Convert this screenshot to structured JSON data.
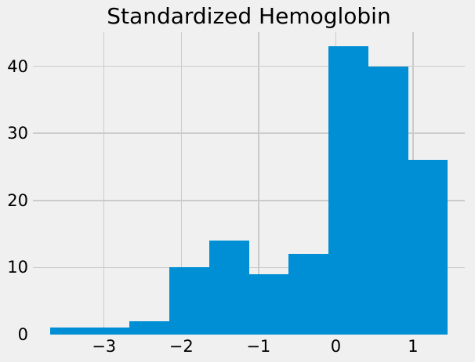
{
  "chart_data": {
    "type": "histogram",
    "title": "Standardized Hemoglobin",
    "xlabel": "",
    "ylabel": "",
    "bin_edges": [
      -3.697,
      -3.183,
      -2.669,
      -2.154,
      -1.64,
      -1.126,
      -0.612,
      -0.097,
      0.417,
      0.931,
      1.445
    ],
    "counts": [
      1,
      1,
      2,
      10,
      14,
      9,
      12,
      43,
      40,
      26
    ],
    "total_count": 158,
    "x_ticks": [
      {
        "value": -3,
        "label": "−3"
      },
      {
        "value": -2,
        "label": "−2"
      },
      {
        "value": -1,
        "label": "−1"
      },
      {
        "value": 0,
        "label": "0"
      },
      {
        "value": 1,
        "label": "1"
      }
    ],
    "y_ticks": [
      {
        "value": 0,
        "label": "0",
        "gridline": false
      },
      {
        "value": 10,
        "label": "10",
        "gridline": true
      },
      {
        "value": 20,
        "label": "20",
        "gridline": true
      },
      {
        "value": 30,
        "label": "30",
        "gridline": true
      },
      {
        "value": 40,
        "label": "40",
        "gridline": true
      }
    ],
    "xlim": [
      -3.92,
      1.67
    ],
    "ylim": [
      0,
      45.1
    ],
    "grid": true,
    "legend": null,
    "style": "fivethirtyeight",
    "colors": {
      "bar": "#008FD5",
      "background": "#F0F0F0",
      "gridline": "#CBCBCB",
      "text": "#000000"
    }
  }
}
